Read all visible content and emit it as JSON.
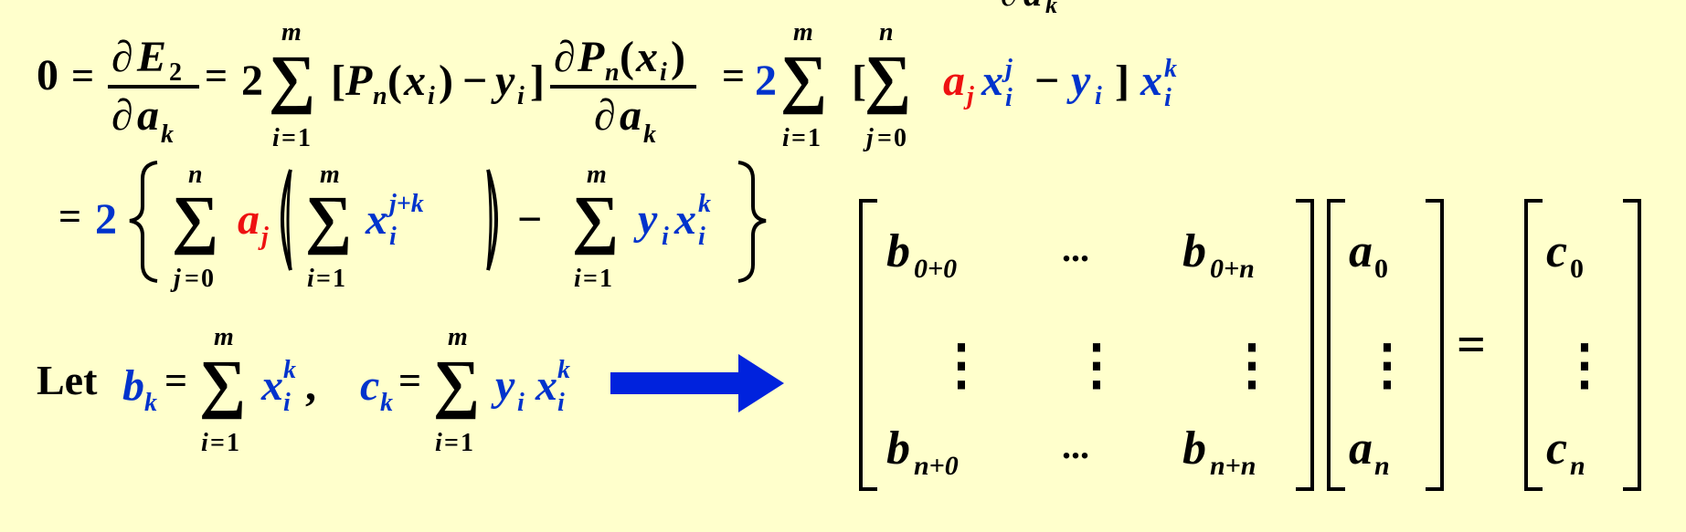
{
  "colors": {
    "background": "#ffffcc",
    "black": "#000000",
    "blue": "#0033cc",
    "red": "#ee1111",
    "arrow": "#0022dd"
  },
  "glyphs": {
    "partial": "∂",
    "sum": "∑",
    "minus": "−",
    "equals": "=",
    "plus": "+",
    "comma": ",",
    "lbracket": "[",
    "rbracket": "]",
    "lparen": "(",
    "rparen": ")",
    "ellipsis": "...",
    "vdots": "⋮"
  },
  "symbols": {
    "zero": "0",
    "two": "2",
    "one": "1",
    "E": "E",
    "a": "a",
    "k": "k",
    "P": "P",
    "n": "n",
    "x": "x",
    "y": "y",
    "i": "i",
    "j": "j",
    "m": "m",
    "b": "b",
    "c": "c",
    "jk": "j+k",
    "sub00": "0+0",
    "sub0n": "0+n",
    "subn0": "n+0",
    "subnn": "n+n"
  },
  "line3": {
    "let_label": "Let"
  },
  "arrow_icon": "right-arrow"
}
